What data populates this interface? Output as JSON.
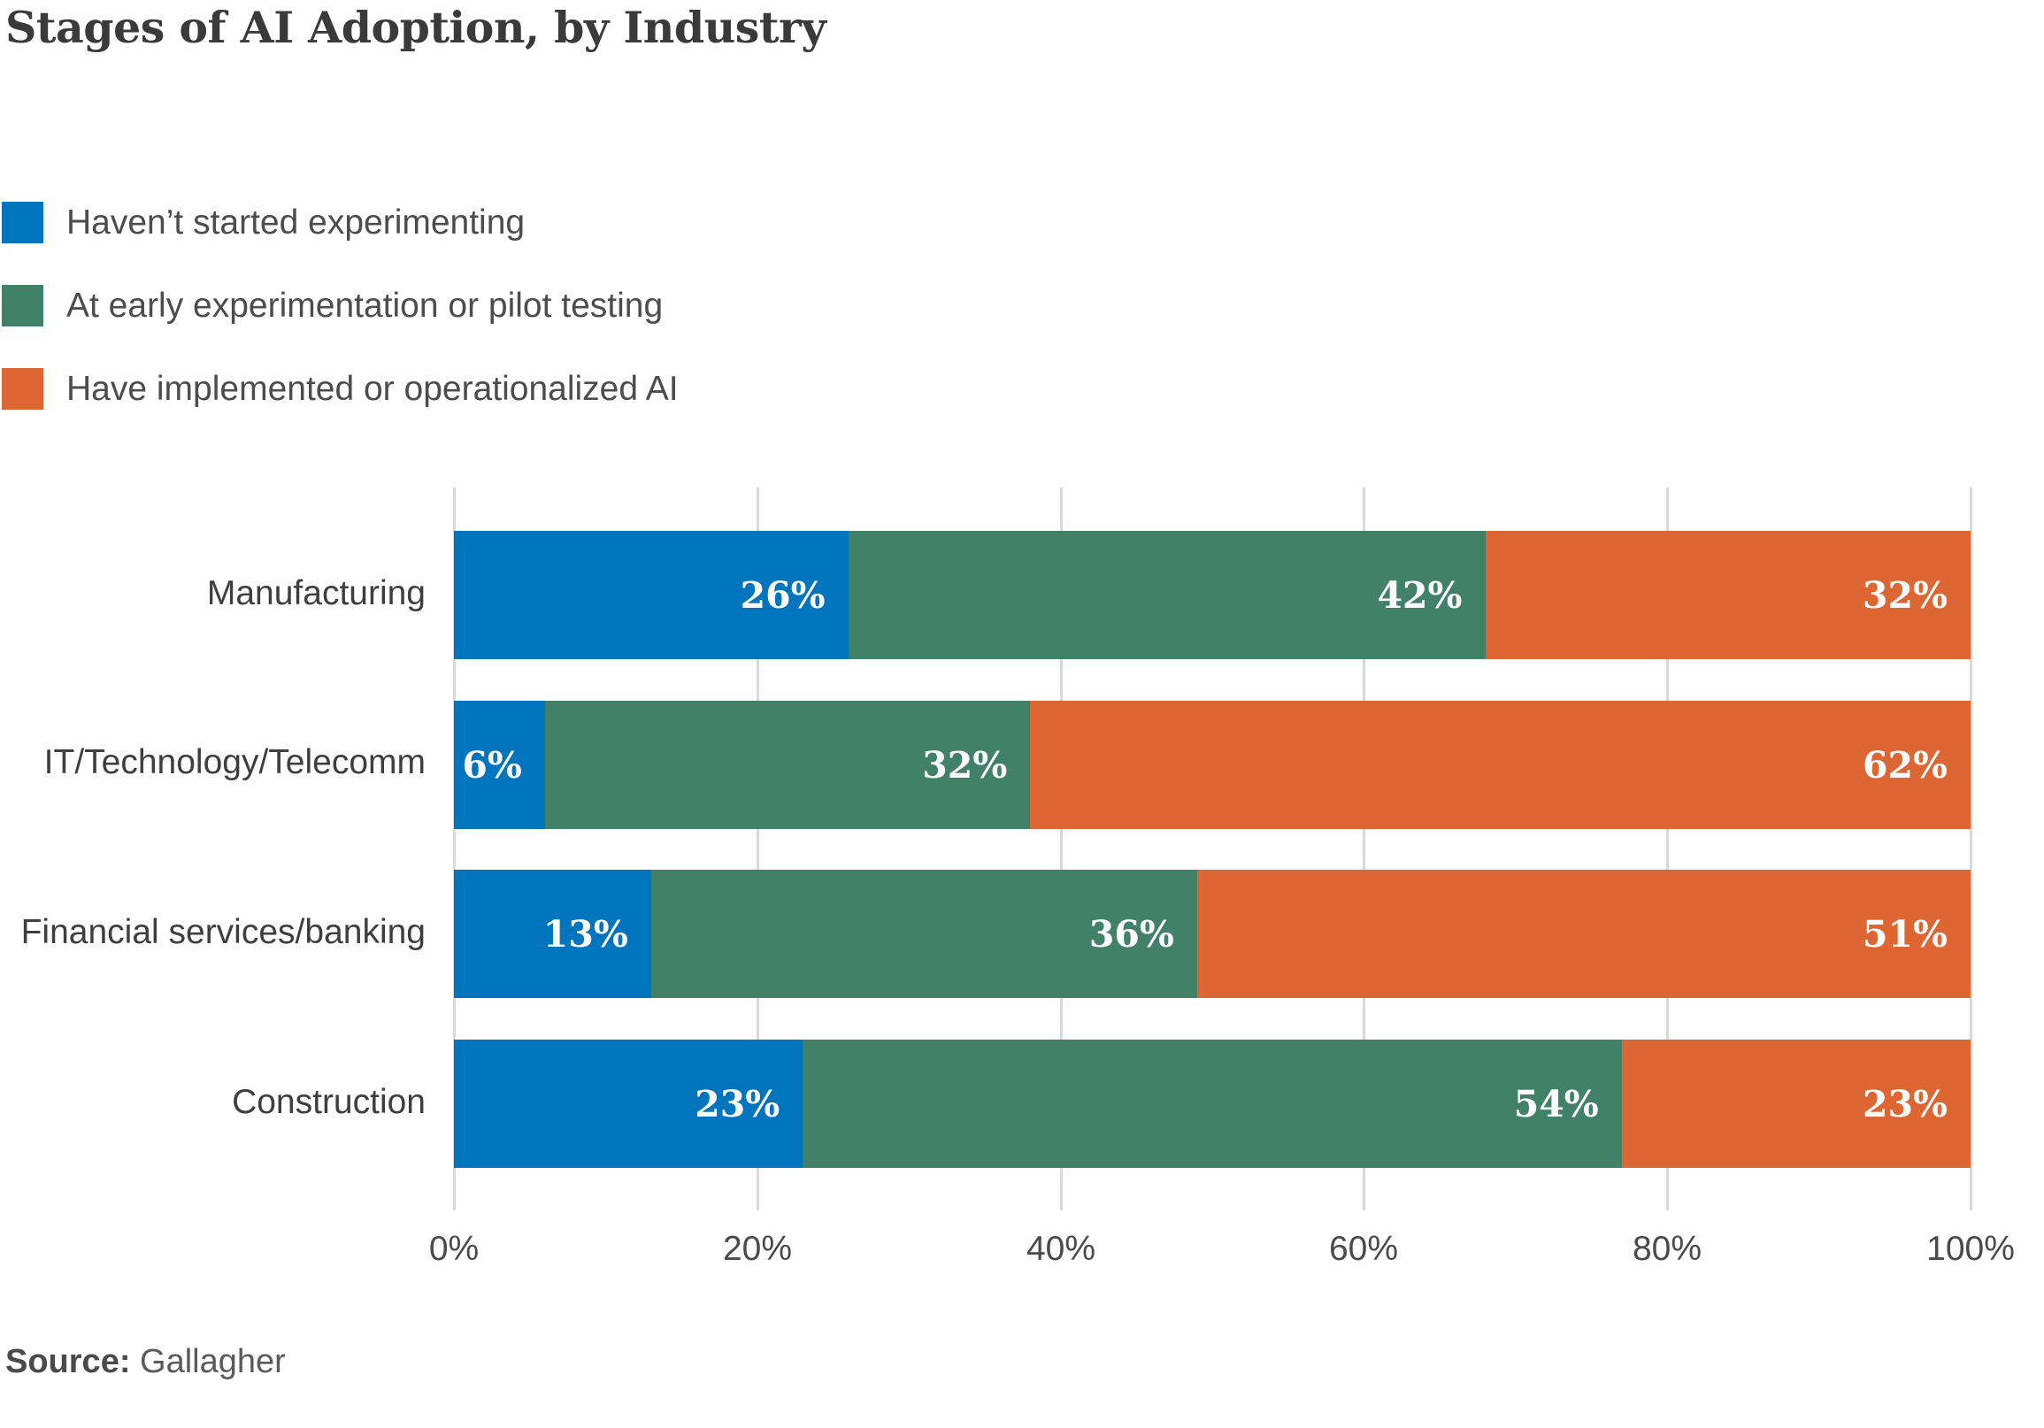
{
  "title": "Stages of AI Adoption, by Industry",
  "source": {
    "label": "Source:",
    "value": "Gallagher"
  },
  "legend": [
    {
      "label": "Haven’t started experimenting",
      "color": "#0074bc"
    },
    {
      "label": "At early experimentation or pilot testing",
      "color": "#418168"
    },
    {
      "label": "Have implemented or operationalized AI",
      "color": "#dd6633"
    }
  ],
  "colors": {
    "blue": "#0074bc",
    "green": "#418168",
    "orange": "#dd6633",
    "gridline": "#d9d9d9",
    "title_text": "#3a3a3a",
    "body_text": "#4c4c4c",
    "value_text": "#ffffff"
  },
  "chart_data": {
    "type": "bar",
    "orientation": "horizontal",
    "stacked": true,
    "title": "Stages of AI Adoption, by Industry",
    "categories": [
      "Manufacturing",
      "IT/Technology/Telecomm",
      "Financial services/banking",
      "Construction"
    ],
    "series": [
      {
        "name": "Haven’t started experimenting",
        "color": "#0074bc",
        "values": [
          26,
          6,
          13,
          23
        ]
      },
      {
        "name": "At early experimentation or pilot testing",
        "color": "#418168",
        "values": [
          42,
          32,
          36,
          54
        ]
      },
      {
        "name": "Have implemented or operationalized AI",
        "color": "#dd6633",
        "values": [
          32,
          62,
          51,
          23
        ]
      }
    ],
    "value_suffix": "%",
    "xlabel": "",
    "ylabel": "",
    "xlim": [
      0,
      100
    ],
    "x_ticks": [
      "0%",
      "20%",
      "40%",
      "60%",
      "80%",
      "100%"
    ],
    "x_tick_values": [
      0,
      20,
      40,
      60,
      80,
      100
    ],
    "grid": true,
    "legend_position": "top-left"
  }
}
